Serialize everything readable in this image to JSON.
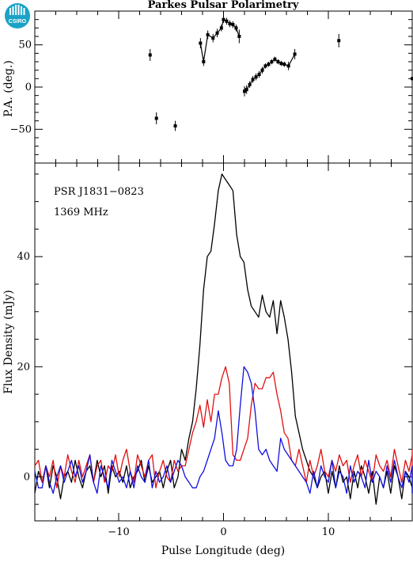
{
  "logo": {
    "text": "CSIRO",
    "color": "#1ba2c6"
  },
  "chart_data": [
    {
      "type": "scatter",
      "title": "Parkes Pulsar Polarimetry",
      "xlabel": "",
      "ylabel": "P.A. (deg.)",
      "xlim": [
        -18,
        18
      ],
      "ylim": [
        -90,
        90
      ],
      "yticks": [
        -50,
        0,
        50
      ],
      "series": [
        {
          "x": [
            -7.0,
            -6.4,
            -4.6,
            -2.2,
            -1.9,
            -1.5,
            -1.0,
            -0.6,
            -0.2,
            0.0,
            0.3,
            0.6,
            0.9,
            1.2,
            1.5,
            2.0,
            2.2,
            2.5,
            2.8,
            3.1,
            3.4,
            3.7,
            4.0,
            4.3,
            4.6,
            4.9,
            5.2,
            5.5,
            5.8,
            6.2,
            6.8,
            11.0,
            18.0
          ],
          "y": [
            38,
            -37,
            -46,
            52,
            30,
            62,
            58,
            64,
            70,
            80,
            78,
            75,
            74,
            70,
            60,
            -5,
            -3,
            3,
            9,
            12,
            15,
            20,
            25,
            27,
            30,
            33,
            30,
            28,
            27,
            25,
            39,
            55,
            10
          ],
          "yerr": [
            7,
            7,
            6,
            6,
            5,
            5,
            5,
            5,
            4,
            4,
            4,
            4,
            4,
            4,
            8,
            6,
            5,
            4,
            4,
            4,
            4,
            4,
            3,
            3,
            3,
            3,
            3,
            3,
            3,
            5,
            6,
            8,
            8
          ]
        }
      ]
    },
    {
      "type": "line",
      "title": "",
      "xlabel": "Pulse Longitude (deg)",
      "ylabel": "Flux Density (mJy)",
      "xlim": [
        -18,
        18
      ],
      "ylim": [
        -8,
        57
      ],
      "xticks": [
        -10,
        0,
        10
      ],
      "yticks": [
        0,
        20,
        40
      ],
      "annotations": [
        "PSR J1831−0823",
        "1369 MHz"
      ],
      "x_start": -18,
      "x_step": 0.35,
      "series": [
        {
          "color": "#000000",
          "values": [
            -3,
            1,
            -1,
            2,
            -2,
            2,
            0,
            -4,
            0,
            1,
            -1,
            3,
            0,
            -2,
            1,
            2,
            -1,
            3,
            0,
            2,
            -3,
            2,
            0,
            1,
            -1,
            2,
            -2,
            0,
            1,
            3,
            -1,
            2,
            -1,
            0,
            1,
            -2,
            1,
            3,
            -2,
            0,
            5,
            3,
            7,
            10,
            16,
            24,
            34,
            40,
            41,
            46,
            52,
            55,
            54,
            53,
            52,
            44,
            40,
            39,
            34,
            31,
            30,
            29,
            33,
            30,
            29,
            32,
            26,
            32,
            29,
            25,
            19,
            11,
            8,
            5,
            3,
            1,
            0,
            -2,
            0,
            1,
            -3,
            1,
            -2,
            2,
            -1,
            0,
            -4,
            1,
            -2,
            2,
            0,
            -3,
            1,
            -5,
            0,
            -2,
            1,
            -3,
            2,
            0,
            -4,
            1,
            0,
            -2,
            2,
            -3,
            1
          ]
        },
        {
          "color": "#e01010",
          "values": [
            2,
            3,
            -1,
            2,
            0,
            3,
            -2,
            2,
            0,
            4,
            1,
            -1,
            3,
            0,
            2,
            4,
            -1,
            2,
            3,
            -1,
            2,
            1,
            4,
            0,
            3,
            5,
            1,
            -1,
            4,
            2,
            0,
            3,
            4,
            -2,
            1,
            3,
            0,
            -1,
            3,
            1,
            2,
            2,
            5,
            8,
            10,
            13,
            9,
            14,
            10,
            15,
            15,
            18,
            20,
            17,
            4,
            3,
            3,
            5,
            7,
            13,
            17,
            16,
            16,
            18,
            18,
            19,
            15,
            12,
            8,
            7,
            3,
            2,
            5,
            2,
            -1,
            3,
            0,
            2,
            5,
            1,
            0,
            3,
            1,
            4,
            2,
            3,
            -1,
            2,
            4,
            0,
            3,
            1,
            -1,
            4,
            2,
            1,
            3,
            0,
            5,
            2,
            -1,
            3,
            1,
            4,
            0,
            5,
            2
          ]
        },
        {
          "color": "#1010e0",
          "values": [
            1,
            -2,
            -2,
            2,
            -1,
            -3,
            0,
            2,
            -1,
            1,
            3,
            0,
            2,
            -1,
            1,
            4,
            -1,
            -3,
            2,
            0,
            -2,
            3,
            1,
            -1,
            0,
            -2,
            1,
            -2,
            2,
            0,
            -1,
            3,
            -2,
            1,
            -1,
            0,
            2,
            -1,
            1,
            3,
            2,
            0,
            -1,
            -2,
            -2,
            0,
            1,
            3,
            5,
            7,
            12,
            8,
            3,
            2,
            2,
            5,
            13,
            20,
            19,
            17,
            12,
            5,
            4,
            5,
            3,
            2,
            1,
            7,
            5,
            4,
            3,
            2,
            1,
            0,
            -1,
            -3,
            1,
            -2,
            2,
            0,
            -1,
            3,
            -2,
            1,
            0,
            -3,
            2,
            -1,
            1,
            0,
            -2,
            3,
            -1,
            1,
            0,
            -2,
            2,
            -1,
            3,
            0,
            -2,
            1,
            -1,
            2,
            0,
            -3,
            2
          ]
        }
      ]
    }
  ]
}
